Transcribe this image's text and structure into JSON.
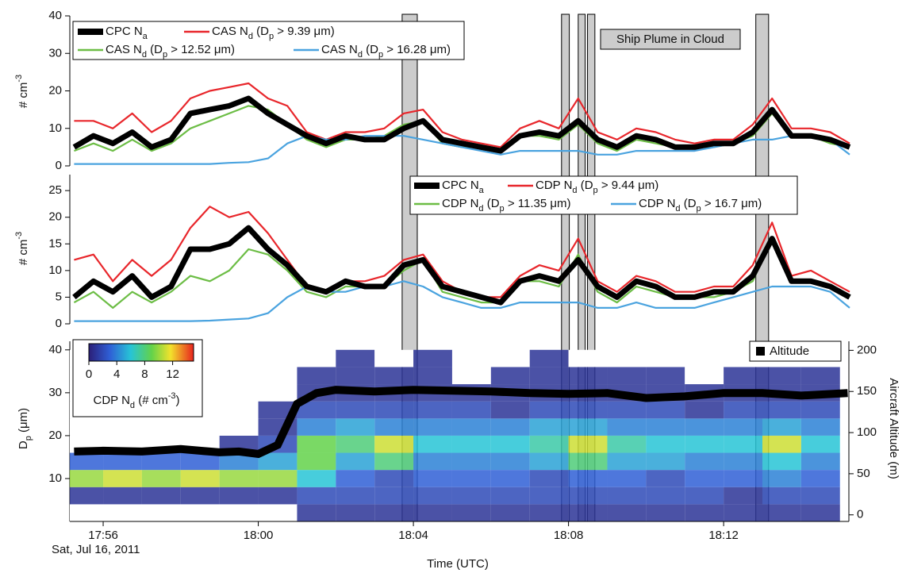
{
  "chart_data": [
    {
      "type": "line",
      "y_label": "# cm^{-3}",
      "xlim": [
        55.14,
        75.23
      ],
      "ylim": [
        0,
        40
      ],
      "yticks": [
        0,
        10,
        20,
        30,
        40
      ],
      "x": [
        55.25,
        55.75,
        56.25,
        56.75,
        57.25,
        57.75,
        58.25,
        58.75,
        59.25,
        59.75,
        60.25,
        60.75,
        61.25,
        61.75,
        62.25,
        62.75,
        63.25,
        63.75,
        64.25,
        64.75,
        65.25,
        65.75,
        66.25,
        66.75,
        67.25,
        67.75,
        68.25,
        68.75,
        69.25,
        69.75,
        70.25,
        70.75,
        71.25,
        71.75,
        72.25,
        72.75,
        73.25,
        73.75,
        74.25,
        74.75,
        75.25
      ],
      "series": [
        {
          "name": "CPC N_a",
          "color": "#000000",
          "values": [
            5,
            8,
            6,
            9,
            5,
            7,
            14,
            15,
            16,
            18,
            14,
            11,
            8,
            6,
            8,
            7,
            7,
            10,
            12,
            7,
            6,
            5,
            4,
            8,
            9,
            8,
            12,
            7,
            5,
            8,
            7,
            5,
            5,
            6,
            6,
            9,
            15,
            8,
            8,
            7,
            5
          ]
        },
        {
          "name": "CAS N_d (D_p > 9.39 μm)",
          "color": "#e8262b",
          "values": [
            12,
            12,
            10,
            14,
            9,
            12,
            18,
            20,
            21,
            22,
            18,
            16,
            9,
            7,
            9,
            9,
            10,
            14,
            15,
            9,
            7,
            6,
            5,
            10,
            12,
            10,
            18,
            9,
            7,
            10,
            9,
            7,
            6,
            7,
            7,
            11,
            18,
            10,
            10,
            9,
            6
          ]
        },
        {
          "name": "CAS N_d (D_p > 12.52 μm)",
          "color": "#6cbd45",
          "values": [
            4,
            6,
            4,
            7,
            4,
            6,
            10,
            12,
            14,
            16,
            15,
            11,
            7,
            5,
            7,
            7,
            8,
            11,
            12,
            6,
            5,
            5,
            4,
            8,
            8,
            7,
            11,
            6,
            4,
            7,
            6,
            5,
            5,
            5,
            6,
            8,
            14,
            8,
            8,
            6,
            5
          ]
        },
        {
          "name": "CAS N_d (D_p > 16.28 μm)",
          "color": "#4aa3df",
          "values": [
            0.5,
            0.5,
            0.5,
            0.5,
            0.5,
            0.5,
            0.5,
            0.5,
            0.8,
            1,
            2,
            6,
            8,
            7,
            7,
            8,
            8,
            8,
            7,
            6,
            5,
            4,
            3,
            4,
            4,
            4,
            4,
            3,
            3,
            4,
            4,
            4,
            4,
            5,
            6,
            7,
            7,
            8,
            8,
            7,
            3
          ]
        }
      ],
      "shaded_regions": {
        "label": "Ship Plume in Cloud",
        "color": "#cccccc",
        "spans": [
          [
            63.71,
            64.1
          ],
          [
            67.82,
            68.02
          ],
          [
            68.25,
            68.43
          ],
          [
            68.49,
            68.68
          ],
          [
            72.83,
            73.16
          ]
        ]
      }
    },
    {
      "type": "line",
      "y_label": "# cm^{-3}",
      "xlim": [
        55.14,
        75.23
      ],
      "ylim": [
        0,
        28
      ],
      "yticks": [
        0,
        5,
        10,
        15,
        20,
        25
      ],
      "x": [
        55.25,
        55.75,
        56.25,
        56.75,
        57.25,
        57.75,
        58.25,
        58.75,
        59.25,
        59.75,
        60.25,
        60.75,
        61.25,
        61.75,
        62.25,
        62.75,
        63.25,
        63.75,
        64.25,
        64.75,
        65.25,
        65.75,
        66.25,
        66.75,
        67.25,
        67.75,
        68.25,
        68.75,
        69.25,
        69.75,
        70.25,
        70.75,
        71.25,
        71.75,
        72.25,
        72.75,
        73.25,
        73.75,
        74.25,
        74.75,
        75.25
      ],
      "series": [
        {
          "name": "CPC N_a",
          "color": "#000000",
          "values": [
            5,
            8,
            6,
            9,
            5,
            7,
            14,
            14,
            15,
            18,
            14,
            11,
            7,
            6,
            8,
            7,
            7,
            11,
            12,
            7,
            6,
            5,
            4,
            8,
            9,
            8,
            12,
            7,
            5,
            8,
            7,
            5,
            5,
            6,
            6,
            9,
            16,
            8,
            8,
            7,
            5
          ]
        },
        {
          "name": "CDP N_d (D_p > 9.44 μm)",
          "color": "#e8262b",
          "values": [
            12,
            13,
            8,
            12,
            9,
            12,
            18,
            22,
            20,
            21,
            17,
            12,
            7,
            6,
            8,
            8,
            9,
            12,
            13,
            8,
            6,
            5,
            5,
            9,
            11,
            10,
            16,
            8,
            6,
            9,
            8,
            6,
            6,
            7,
            7,
            11,
            19,
            9,
            10,
            8,
            6
          ]
        },
        {
          "name": "CDP N_d (D_p > 11.35 μm)",
          "color": "#6cbd45",
          "values": [
            4,
            6,
            3,
            6,
            4,
            6,
            9,
            8,
            10,
            14,
            13,
            10,
            6,
            5,
            7,
            7,
            7,
            10,
            12,
            6,
            5,
            4,
            4,
            8,
            8,
            7,
            13,
            6,
            4,
            7,
            6,
            5,
            5,
            5,
            6,
            8,
            16,
            8,
            8,
            7,
            5
          ]
        },
        {
          "name": "CDP N_d (D_p > 16.7 μm)",
          "color": "#4aa3df",
          "values": [
            0.5,
            0.5,
            0.5,
            0.5,
            0.5,
            0.5,
            0.5,
            0.6,
            0.8,
            1,
            2,
            5,
            7,
            6,
            6,
            7,
            7,
            8,
            7,
            5,
            4,
            3,
            3,
            4,
            4,
            4,
            4,
            3,
            3,
            4,
            3,
            3,
            3,
            4,
            5,
            6,
            7,
            7,
            7,
            6,
            3
          ]
        }
      ]
    },
    {
      "type": "heatmap",
      "y_label": "D_p (μm)",
      "y2_label": "Aircraft Altitude (m)",
      "x_label": "Time (UTC)",
      "date_label": "Sat, Jul 16, 2011",
      "xlim": [
        55.14,
        75.23
      ],
      "xticks": [
        {
          "value": 56,
          "label": "17:56"
        },
        {
          "value": 60,
          "label": "18:00"
        },
        {
          "value": 64,
          "label": "18:04"
        },
        {
          "value": 68,
          "label": "18:08"
        },
        {
          "value": 72,
          "label": "18:12"
        }
      ],
      "ylim": [
        0,
        42
      ],
      "yticks": [
        10,
        20,
        30,
        40
      ],
      "y2lim": [
        -8,
        211
      ],
      "y2ticks": [
        0,
        50,
        100,
        150,
        200
      ],
      "heatmap": {
        "colorbar_label": "CDP N_d (# cm^{-3})",
        "clim": [
          0,
          15
        ],
        "cticks": [
          0,
          4,
          8,
          12
        ],
        "x": [
          55.5,
          56.5,
          57.5,
          58.5,
          59.5,
          60.5,
          61.5,
          62.5,
          63.5,
          64.5,
          65.5,
          66.5,
          67.5,
          68.5,
          69.5,
          70.5,
          71.5,
          72.5,
          73.5,
          74.5
        ],
        "y": [
          2,
          6,
          10,
          14,
          18,
          22,
          26,
          30,
          34,
          38
        ],
        "z": [
          [
            0,
            0,
            0,
            0,
            0,
            0,
            1,
            1,
            1,
            1,
            1,
            1,
            1,
            1,
            1,
            1,
            1,
            1,
            1,
            1
          ],
          [
            1,
            1,
            1,
            1,
            1,
            1,
            2,
            2,
            2,
            2,
            2,
            2,
            2,
            2,
            2,
            2,
            2,
            1,
            2,
            2
          ],
          [
            10,
            11,
            10,
            11,
            10,
            10,
            6,
            3,
            2,
            3,
            3,
            3,
            2,
            3,
            3,
            2,
            3,
            3,
            4,
            3
          ],
          [
            3,
            3,
            3,
            3,
            4,
            5,
            9,
            5,
            8,
            4,
            4,
            4,
            5,
            8,
            5,
            5,
            4,
            4,
            6,
            4
          ],
          [
            0,
            0,
            0,
            0,
            1,
            2,
            9,
            8,
            11,
            6,
            6,
            6,
            7,
            11,
            7,
            6,
            6,
            6,
            11,
            6
          ],
          [
            0,
            0,
            0,
            0,
            0,
            1,
            4,
            5,
            4,
            4,
            4,
            4,
            5,
            5,
            4,
            4,
            4,
            4,
            5,
            4
          ],
          [
            0,
            0,
            0,
            0,
            0,
            1,
            2,
            2,
            2,
            2,
            2,
            1,
            2,
            2,
            2,
            2,
            1,
            2,
            2,
            2
          ],
          [
            0,
            0,
            0,
            0,
            0,
            0,
            1,
            1,
            1,
            1,
            1,
            1,
            1,
            1,
            1,
            1,
            1,
            1,
            1,
            1
          ],
          [
            0,
            0,
            0,
            0,
            0,
            0,
            1,
            1,
            1,
            1,
            0,
            1,
            1,
            1,
            1,
            1,
            0,
            1,
            1,
            1
          ],
          [
            0,
            0,
            0,
            0,
            0,
            0,
            0,
            1,
            0,
            1,
            0,
            0,
            1,
            0,
            0,
            0,
            0,
            0,
            0,
            0
          ]
        ]
      },
      "series": [
        {
          "name": "Altitude",
          "color": "#000000",
          "axis": "y2",
          "x": [
            55.25,
            56,
            57,
            58,
            58.5,
            59,
            59.5,
            60,
            60.5,
            61,
            61.5,
            62,
            63,
            64,
            65,
            66,
            67,
            68,
            69,
            70,
            71,
            72,
            73,
            74,
            75.2
          ],
          "values": [
            77,
            78,
            77,
            80,
            78,
            76,
            77,
            74,
            85,
            135,
            148,
            152,
            150,
            152,
            151,
            150,
            148,
            147,
            148,
            142,
            144,
            148,
            148,
            145,
            148
          ]
        }
      ]
    }
  ]
}
